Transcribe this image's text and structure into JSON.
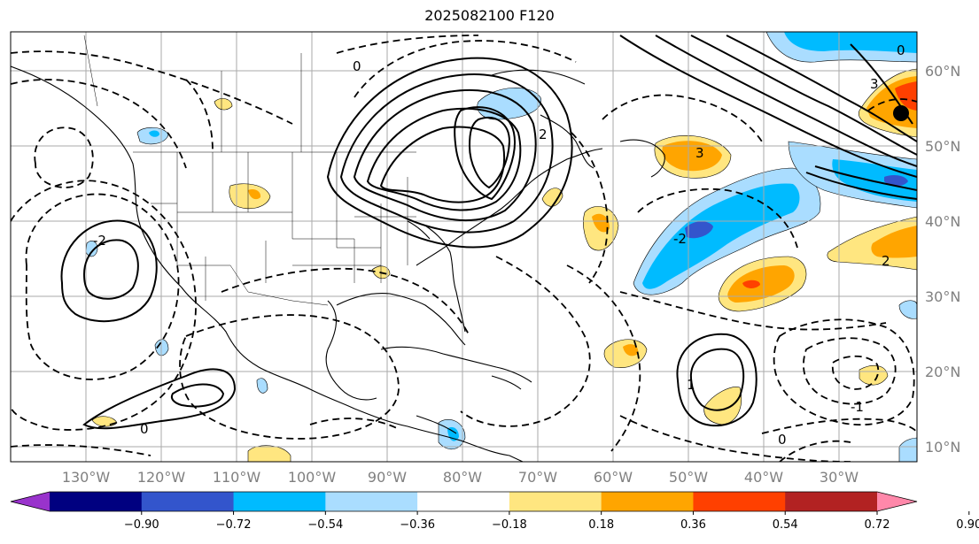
{
  "title": "2025082100 F120",
  "map": {
    "lat_ticks": [
      "60°N",
      "50°N",
      "40°N",
      "30°N",
      "20°N",
      "10°N"
    ],
    "lon_ticks": [
      "130°W",
      "120°W",
      "110°W",
      "100°W",
      "90°W",
      "80°W",
      "70°W",
      "60°W",
      "50°W",
      "40°W",
      "30°W"
    ],
    "contour_labels": {
      "jet_core": "3",
      "east_high": "3",
      "north_ridge": "2",
      "west_low": "-2",
      "trough_a": "-2",
      "zero_north": "0",
      "zero_mid": "0",
      "zero_south": "0",
      "positive_one": "1",
      "negative_one": "-1",
      "east_two": "2",
      "east_zero": "0"
    }
  },
  "colorbar": {
    "tick_labels": [
      "−0.90",
      "−0.72",
      "−0.54",
      "−0.36",
      "−0.18",
      "0.18",
      "0.36",
      "0.54",
      "0.72",
      "0.90"
    ],
    "colors": [
      "#9933cc",
      "#000080",
      "#3355cc",
      "#00bbff",
      "#aaddff",
      "#ffffff",
      "#ffe680",
      "#ffa500",
      "#ff4000",
      "#b22222",
      "#ff88aa"
    ]
  }
}
